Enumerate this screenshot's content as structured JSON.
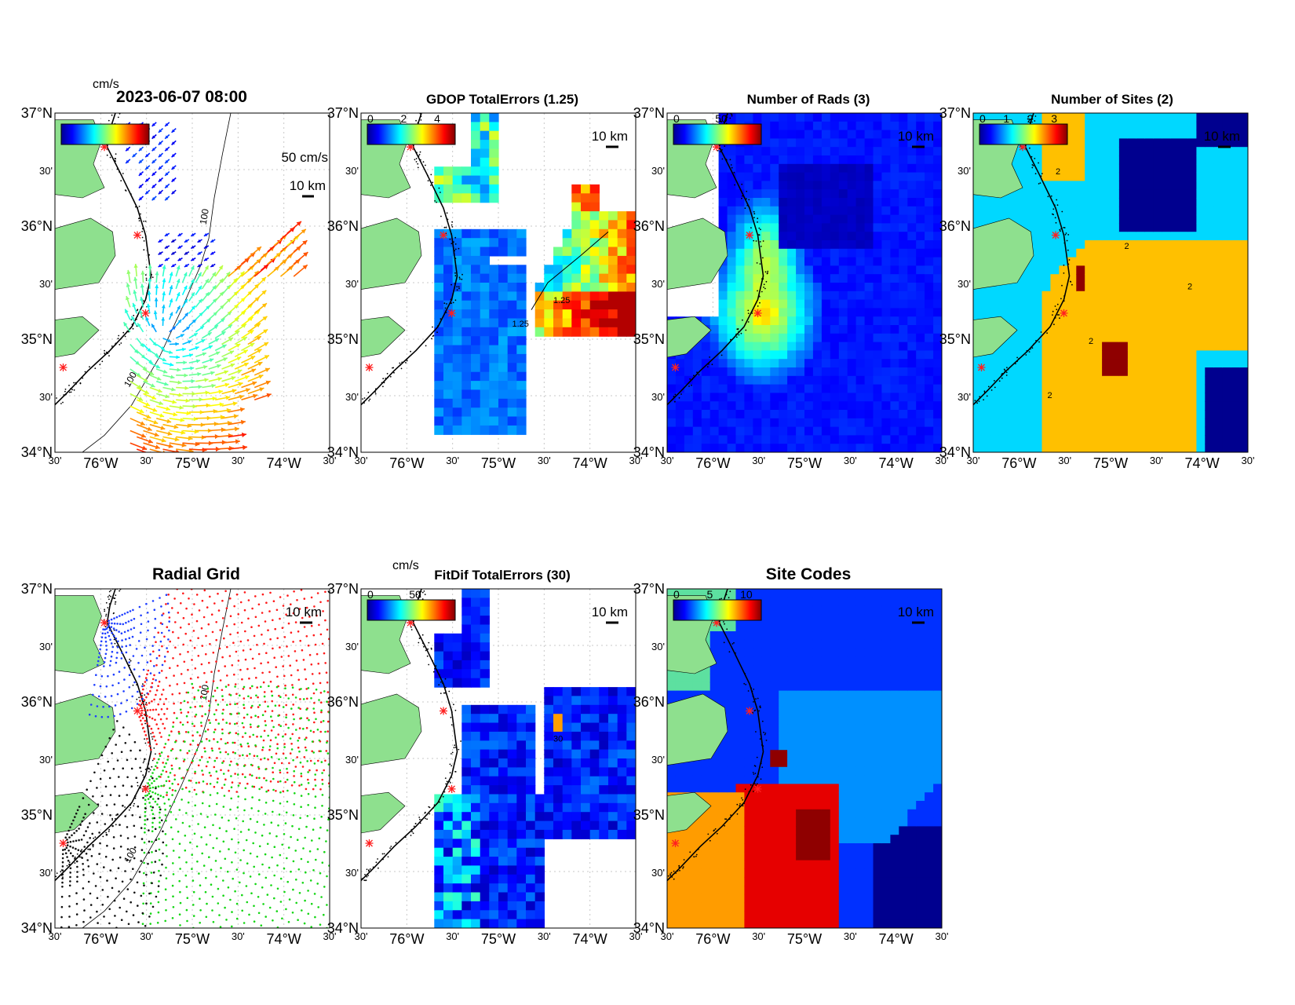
{
  "timestamp": "2023-06-07 08:00",
  "units": {
    "cms": "cm/s"
  },
  "scale_labels": {
    "km": "10 km",
    "speed": "50 cm/s"
  },
  "axes": {
    "lat_labels": [
      "37°N",
      "30'",
      "36°N",
      "30'",
      "35°N",
      "30'",
      "34°N"
    ],
    "lon_labels": [
      "30'",
      "76°W",
      "30'",
      "75°W",
      "30'",
      "74°W",
      "30'"
    ]
  },
  "contour_labels": {
    "depth100": "100",
    "gdop": "1.25",
    "fitdif": "30",
    "two": "2"
  },
  "colors": {
    "land": "#8ee08e",
    "site_marker": "#ff2020",
    "grid_site_colors": [
      "#1f3fff",
      "#ff1a1a",
      "#13d613",
      "#111111"
    ]
  },
  "panels": [
    {
      "id": "currents",
      "title": "",
      "colorbar": {
        "ticks": []
      }
    },
    {
      "id": "gdop",
      "title": "GDOP TotalErrors (1.25)",
      "colorbar": {
        "ticks": [
          "0",
          "2",
          "4"
        ]
      }
    },
    {
      "id": "rads",
      "title": "Number of Rads (3)",
      "colorbar": {
        "ticks": [
          "0",
          "50"
        ]
      }
    },
    {
      "id": "sites",
      "title": "Number of Sites (2)",
      "colorbar": {
        "ticks": [
          "0",
          "1",
          "2",
          "3"
        ]
      }
    },
    {
      "id": "radial",
      "title": "Radial Grid",
      "colorbar": null
    },
    {
      "id": "fitdif",
      "title": "FitDif TotalErrors (30)",
      "colorbar": {
        "unit": "cm/s",
        "ticks": [
          "0",
          "50"
        ]
      }
    },
    {
      "id": "codes",
      "title": "Site Codes",
      "colorbar": {
        "ticks": [
          "0",
          "5",
          "10"
        ]
      }
    }
  ]
}
